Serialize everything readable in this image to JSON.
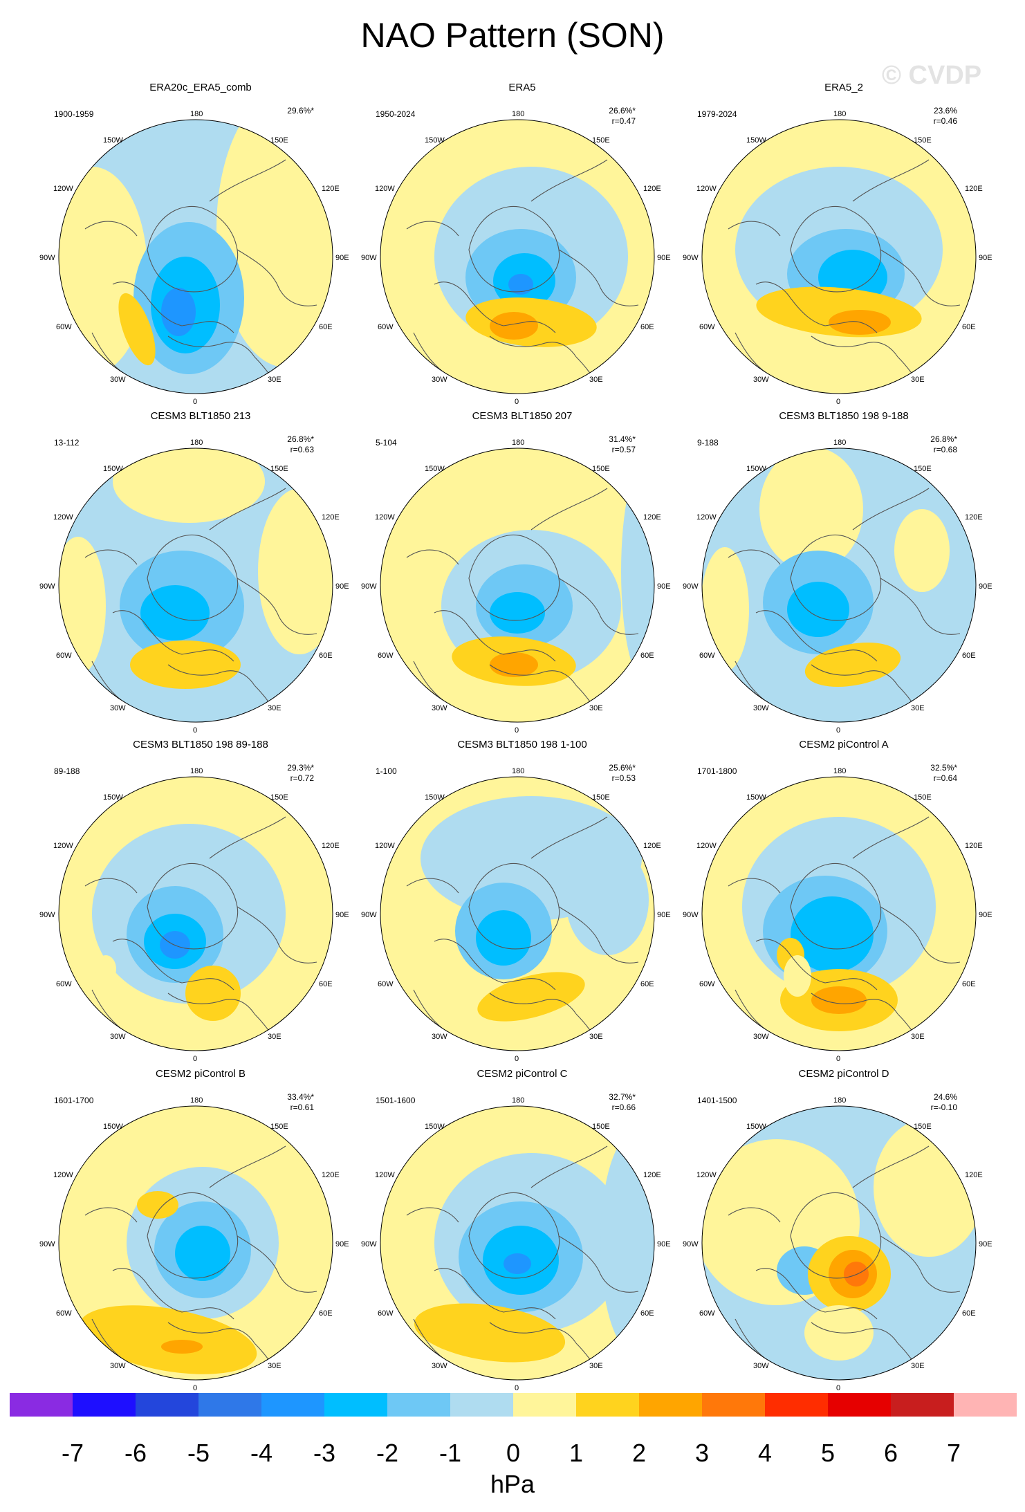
{
  "title": "NAO Pattern (SON)",
  "watermark": "© CVDP",
  "lon_labels": [
    "180",
    "150E",
    "120E",
    "90E",
    "60E",
    "30E",
    "0",
    "30W",
    "60W",
    "90W",
    "120W",
    "150W"
  ],
  "panels": [
    {
      "title": "ERA20c_ERA5_comb",
      "period": "1900-1959",
      "pct": "29.6%*",
      "r": ""
    },
    {
      "title": "ERA5",
      "period": "1950-2024",
      "pct": "26.6%*",
      "r": "r=0.47"
    },
    {
      "title": "ERA5_2",
      "period": "1979-2024",
      "pct": "23.6%",
      "r": "r=0.46"
    },
    {
      "title": "CESM3 BLT1850 213",
      "period": "13-112",
      "pct": "26.8%*",
      "r": "r=0.63"
    },
    {
      "title": "CESM3 BLT1850 207",
      "period": "5-104",
      "pct": "31.4%*",
      "r": "r=0.57"
    },
    {
      "title": "CESM3 BLT1850 198 9-188",
      "period": "9-188",
      "pct": "26.8%*",
      "r": "r=0.68"
    },
    {
      "title": "CESM3 BLT1850 198 89-188",
      "period": "89-188",
      "pct": "29.3%*",
      "r": "r=0.72"
    },
    {
      "title": "CESM3 BLT1850 198 1-100",
      "period": "1-100",
      "pct": "25.6%*",
      "r": "r=0.53"
    },
    {
      "title": "CESM2 piControl A",
      "period": "1701-1800",
      "pct": "32.5%*",
      "r": "r=0.64"
    },
    {
      "title": "CESM2 piControl B",
      "period": "1601-1700",
      "pct": "33.4%*",
      "r": "r=0.61"
    },
    {
      "title": "CESM2 piControl C",
      "period": "1501-1600",
      "pct": "32.7%*",
      "r": "r=0.66"
    },
    {
      "title": "CESM2 piControl D",
      "period": "1401-1500",
      "pct": "24.6%",
      "r": "r=-0.10"
    }
  ],
  "colorbar": {
    "colors": [
      "#8a2be2",
      "#1e0fff",
      "#2346dc",
      "#2f78e8",
      "#1e96ff",
      "#00beff",
      "#6ec8f5",
      "#afdcf0",
      "#fff59a",
      "#ffd31e",
      "#ffa500",
      "#ff780a",
      "#ff2d00",
      "#e60000",
      "#c81e1e",
      "#ffb4b4"
    ],
    "ticks": [
      "-7",
      "-6",
      "-5",
      "-4",
      "-3",
      "-2",
      "-1",
      "0",
      "1",
      "2",
      "3",
      "4",
      "5",
      "6",
      "7"
    ],
    "unit": "hPa"
  },
  "palette": {
    "positive_1": "#fff59a",
    "positive_2": "#ffd31e",
    "positive_3": "#ffa500",
    "positive_4": "#ff780a",
    "negative_1": "#afdcf0",
    "negative_2": "#6ec8f5",
    "negative_3": "#00beff",
    "negative_4": "#1e96ff",
    "negative_5": "#2f78e8",
    "coast": "#555555"
  }
}
